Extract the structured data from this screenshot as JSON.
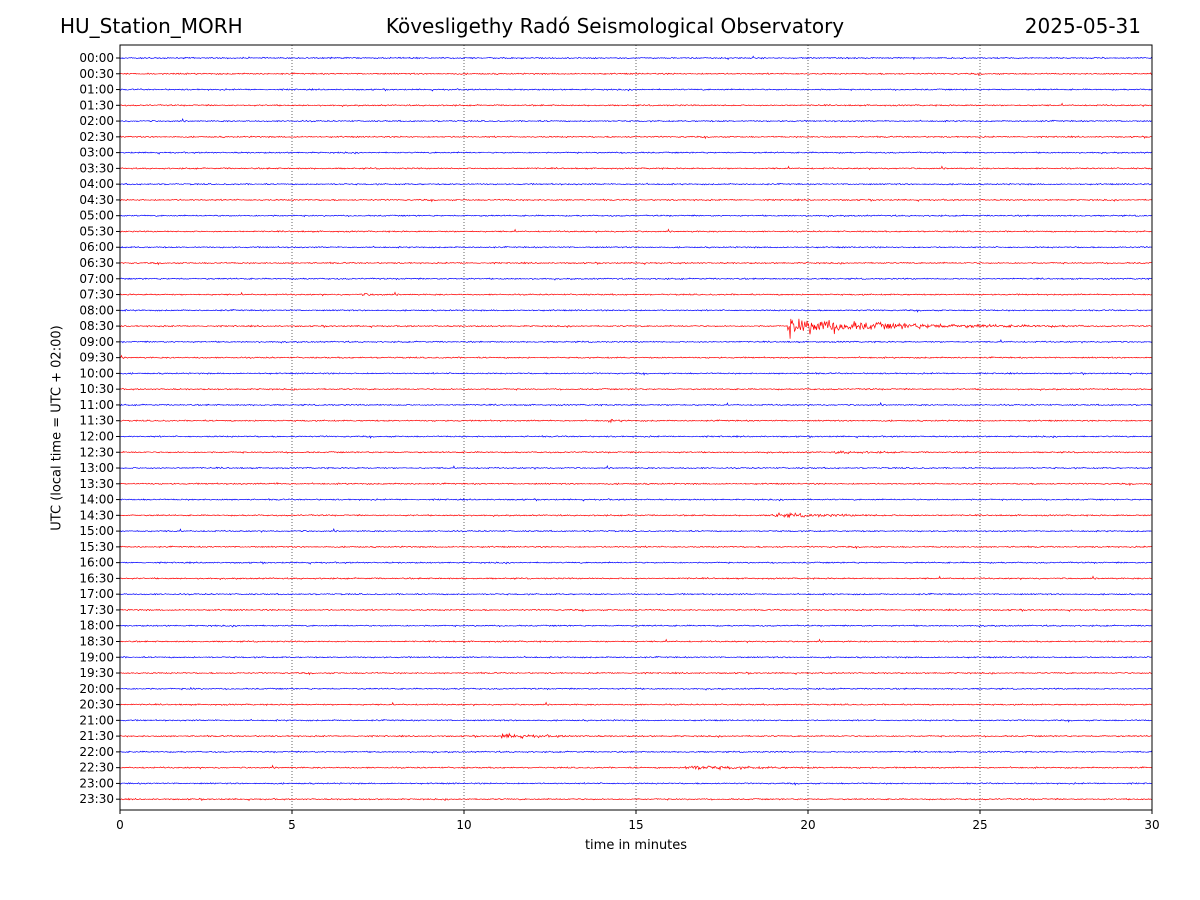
{
  "header": {
    "station": "HU_Station_MORH",
    "title": "Kövesligethy Radó Seismological Observatory",
    "date": "2025-05-31"
  },
  "chart_data": {
    "type": "line",
    "xlabel": "time in minutes",
    "ylabel": "UTC (local time = UTC + 02:00)",
    "xlim": [
      0,
      30
    ],
    "x_ticks": [
      "0",
      "5",
      "10",
      "15",
      "20",
      "25",
      "30"
    ],
    "x_grid": "dotted vertical lines at every 5 minutes",
    "colors": [
      "#0000ff",
      "#ff0000"
    ],
    "rows": [
      "00:00",
      "00:30",
      "01:00",
      "01:30",
      "02:00",
      "02:30",
      "03:00",
      "03:30",
      "04:00",
      "04:30",
      "05:00",
      "05:30",
      "06:00",
      "06:30",
      "07:00",
      "07:30",
      "08:00",
      "08:30",
      "09:00",
      "09:30",
      "10:00",
      "10:30",
      "11:00",
      "11:30",
      "12:00",
      "12:30",
      "13:00",
      "13:30",
      "14:00",
      "14:30",
      "15:00",
      "15:30",
      "16:00",
      "16:30",
      "17:00",
      "17:30",
      "18:00",
      "18:30",
      "19:00",
      "19:30",
      "20:00",
      "20:30",
      "21:00",
      "21:30",
      "22:00",
      "22:30",
      "23:00",
      "23:30"
    ],
    "events": [
      {
        "row": "07:30",
        "start_min": 7.0,
        "end_min": 8.2,
        "amplitude": 0.2,
        "decay": 0.5
      },
      {
        "row": "08:30",
        "start_min": 19.4,
        "end_min": 28.0,
        "amplitude": 2.4,
        "decay": 2.5
      },
      {
        "row": "11:30",
        "start_min": 14.2,
        "end_min": 14.9,
        "amplitude": 0.25,
        "decay": 0.3
      },
      {
        "row": "12:30",
        "start_min": 20.8,
        "end_min": 22.5,
        "amplitude": 0.25,
        "decay": 1.0
      },
      {
        "row": "13:30",
        "start_min": 4.4,
        "end_min": 4.7,
        "amplitude": 0.25,
        "decay": 0.2
      },
      {
        "row": "14:30",
        "start_min": 18.9,
        "end_min": 24.5,
        "amplitude": 0.55,
        "decay": 1.5
      },
      {
        "row": "20:00",
        "start_min": 2.0,
        "end_min": 2.3,
        "amplitude": 0.25,
        "decay": 0.2
      },
      {
        "row": "21:30",
        "start_min": 11.1,
        "end_min": 14.0,
        "amplitude": 0.6,
        "decay": 0.9
      },
      {
        "row": "22:30",
        "start_min": 16.4,
        "end_min": 24.0,
        "amplitude": 0.6,
        "decay": 1.4
      }
    ]
  }
}
